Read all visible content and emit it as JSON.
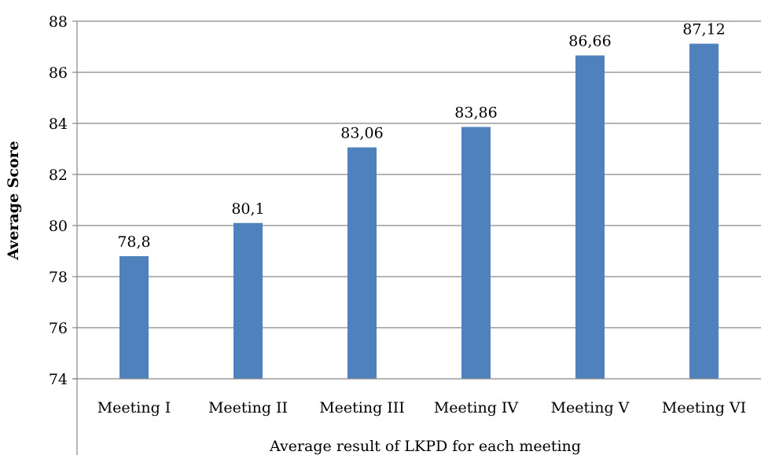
{
  "chart_data": {
    "type": "bar",
    "title": "",
    "xlabel": "Average result of LKPD for each meeting",
    "ylabel": "Average Score",
    "categories": [
      "Meeting I",
      "Meeting II",
      "Meeting III",
      "Meeting IV",
      "Meeting V",
      "Meeting VI"
    ],
    "values": [
      78.8,
      80.1,
      83.06,
      83.86,
      86.66,
      87.12
    ],
    "value_labels": [
      "78,8",
      "80,1",
      "83,06",
      "83,86",
      "86,66",
      "87,12"
    ],
    "ylim": [
      74,
      88
    ],
    "yticks": [
      74,
      76,
      78,
      80,
      82,
      84,
      86,
      88
    ],
    "ytick_labels": [
      "74",
      "76",
      "78",
      "80",
      "82",
      "84",
      "86",
      "88"
    ],
    "grid": true,
    "legend": "none",
    "colors": {
      "bar": "#4f81bd",
      "grid": "#878787",
      "axis": "#878787"
    }
  }
}
